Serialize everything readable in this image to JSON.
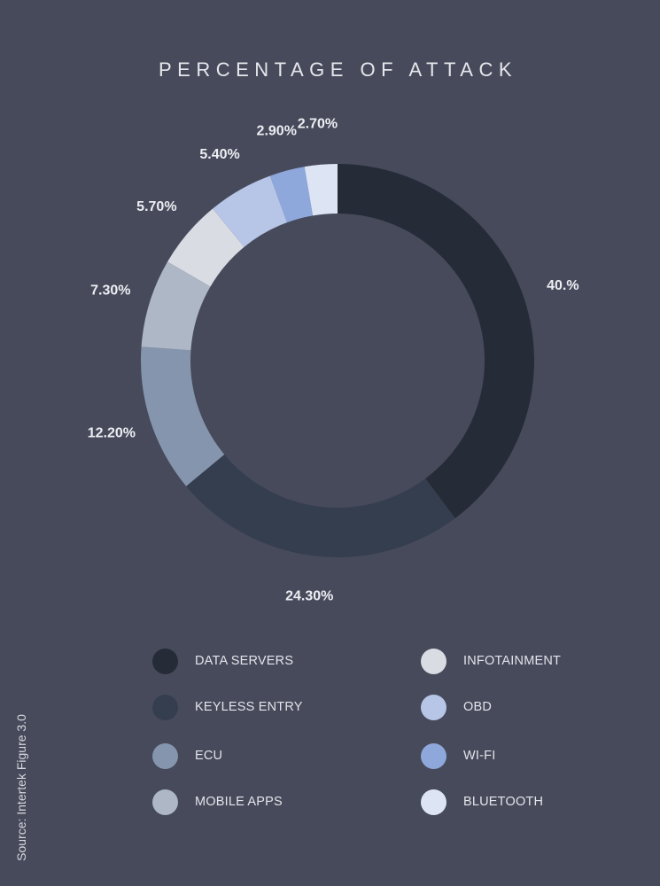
{
  "title": "PERCENTAGE OF ATTACK",
  "source": "Source: Intertek Figure 3.0",
  "chart_data": {
    "type": "pie",
    "variant": "donut",
    "title": "PERCENTAGE OF ATTACK",
    "categories": [
      "DATA SERVERS",
      "KEYLESS ENTRY",
      "ECU",
      "MOBILE APPS",
      "INFOTAINMENT",
      "OBD",
      "WI-FI",
      "BLUETOOTH"
    ],
    "values": [
      40.0,
      24.3,
      12.2,
      7.3,
      5.7,
      5.4,
      2.9,
      2.7
    ],
    "data_labels": [
      "40.%",
      "24.30%",
      "12.20%",
      "7.30%",
      "5.70%",
      "5.40%",
      "2.90%",
      "2.70%"
    ],
    "colors": [
      "#252b37",
      "#353e4f",
      "#8595ad",
      "#adb7c6",
      "#d9dce3",
      "#b7c6e7",
      "#8fa8dc",
      "#dde5f5"
    ],
    "legend_position": "bottom",
    "start_angle": "top",
    "direction": "clockwise"
  },
  "legend": [
    {
      "label": "DATA SERVERS",
      "color": "#252b37"
    },
    {
      "label": "KEYLESS ENTRY",
      "color": "#353e4f"
    },
    {
      "label": "ECU",
      "color": "#8595ad"
    },
    {
      "label": "MOBILE APPS",
      "color": "#adb7c6"
    },
    {
      "label": "INFOTAINMENT",
      "color": "#d9dce3"
    },
    {
      "label": "OBD",
      "color": "#b7c6e7"
    },
    {
      "label": "WI-FI",
      "color": "#8fa8dc"
    },
    {
      "label": "BLUETOOTH",
      "color": "#dde5f5"
    }
  ]
}
